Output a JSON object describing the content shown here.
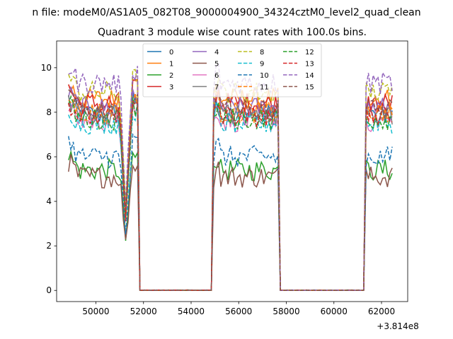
{
  "suptitle": "n file: modeM0/AS1A05_082T08_9000004900_34324cztM0_level2_quad_clean",
  "chart_data": {
    "type": "line",
    "title": "Quadrant 3 module wise count rates with 100.0s bins.",
    "xlabel": "",
    "ylabel": "",
    "x_offset_label": "+3.814e8",
    "xlim": [
      48350,
      63100
    ],
    "ylim": [
      -0.5,
      11.2
    ],
    "x_ticks": [
      50000,
      52000,
      54000,
      56000,
      58000,
      60000,
      62000
    ],
    "x_tick_labels": [
      "50000",
      "52000",
      "54000",
      "56000",
      "58000",
      "60000",
      "62000"
    ],
    "y_ticks": [
      0,
      2,
      4,
      6,
      8,
      10
    ],
    "y_tick_labels": [
      "0",
      "2",
      "4",
      "6",
      "8",
      "10"
    ],
    "legend_position": "upper-center",
    "legend_columns": 4,
    "x_start": 48850,
    "x_end": 62450,
    "x_step": 100,
    "segments": [
      {
        "start": 48850,
        "end": 51800,
        "on": true
      },
      {
        "start": 51800,
        "end": 54900,
        "on": false
      },
      {
        "start": 55000,
        "end": 57700,
        "on": true
      },
      {
        "start": 57700,
        "end": 61300,
        "on": false
      },
      {
        "start": 61300,
        "end": 62450,
        "on": true
      }
    ],
    "dip": {
      "center": 51250,
      "width": 250,
      "depth_fraction": 0.58
    },
    "series": [
      {
        "name": "0",
        "level": 7.9,
        "color": "#1f77b4",
        "dash": "solid"
      },
      {
        "name": "1",
        "level": 8.6,
        "color": "#ff7f0e",
        "dash": "solid"
      },
      {
        "name": "2",
        "level": 5.4,
        "color": "#2ca02c",
        "dash": "solid"
      },
      {
        "name": "3",
        "level": 8.4,
        "color": "#d62728",
        "dash": "solid"
      },
      {
        "name": "4",
        "level": 8.2,
        "color": "#9467bd",
        "dash": "solid"
      },
      {
        "name": "5",
        "level": 5.1,
        "color": "#8c564b",
        "dash": "solid"
      },
      {
        "name": "6",
        "level": 7.6,
        "color": "#e377c2",
        "dash": "solid"
      },
      {
        "name": "7",
        "level": 7.9,
        "color": "#7f7f7f",
        "dash": "solid"
      },
      {
        "name": "8",
        "level": 8.9,
        "color": "#bcbd22",
        "dash": "dashed"
      },
      {
        "name": "9",
        "level": 7.5,
        "color": "#17becf",
        "dash": "dashed"
      },
      {
        "name": "10",
        "level": 6.0,
        "color": "#1f77b4",
        "dash": "dashed"
      },
      {
        "name": "11",
        "level": 8.0,
        "color": "#ff7f0e",
        "dash": "dashed"
      },
      {
        "name": "12",
        "level": 7.7,
        "color": "#2ca02c",
        "dash": "dashed"
      },
      {
        "name": "13",
        "level": 7.8,
        "color": "#d62728",
        "dash": "dashed"
      },
      {
        "name": "14",
        "level": 9.3,
        "color": "#9467bd",
        "dash": "dashed"
      },
      {
        "name": "15",
        "level": 8.1,
        "color": "#8c564b",
        "dash": "dashed"
      }
    ]
  }
}
